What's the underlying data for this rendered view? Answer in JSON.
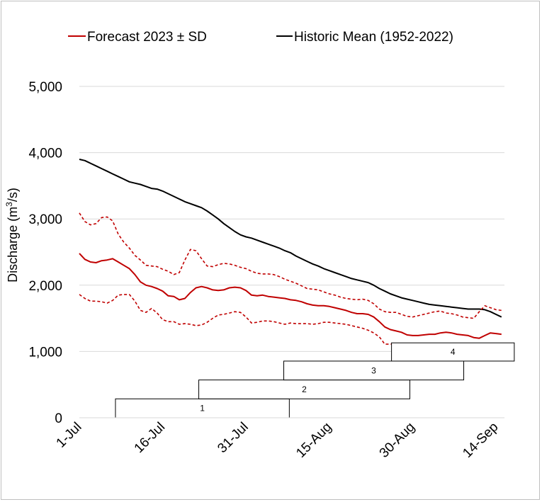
{
  "chart_data": {
    "type": "line",
    "ylabel": "Discharge (m3/s)",
    "ylabel_base": "Discharge (m",
    "ylabel_sup": "3",
    "ylabel_tail": "/s)",
    "ylim": [
      0,
      5000
    ],
    "yticks": [
      0,
      1000,
      2000,
      3000,
      4000,
      5000
    ],
    "ytick_labels": [
      "0",
      "1,000",
      "2,000",
      "3,000",
      "4,000",
      "5,000"
    ],
    "xlim_days": [
      0,
      77
    ],
    "xticks_days": [
      0,
      15,
      30,
      45,
      60,
      75
    ],
    "xtick_labels": [
      "1-Jul",
      "16-Jul",
      "31-Jul",
      "15-Aug",
      "30-Aug",
      "14-Sep"
    ],
    "legend": [
      {
        "label": "Forecast 2023 ± SD",
        "color": "#c00000"
      },
      {
        "label": "Historic Mean (1952-2022)",
        "color": "#000000"
      }
    ],
    "series": [
      {
        "name": "Historic Mean (1952-2022)",
        "color": "#000000",
        "style": "solid",
        "x": [
          0,
          1,
          2,
          3,
          4,
          5,
          6,
          7,
          8,
          9,
          10,
          11,
          12,
          13,
          14,
          15,
          16,
          17,
          18,
          19,
          20,
          21,
          22,
          23,
          24,
          25,
          26,
          27,
          28,
          29,
          30,
          31,
          32,
          33,
          34,
          35,
          36,
          37,
          38,
          39,
          40,
          41,
          42,
          43,
          44,
          45,
          46,
          47,
          48,
          49,
          50,
          51,
          52,
          53,
          54,
          55,
          56,
          57,
          58,
          59,
          60,
          61,
          62,
          63,
          64,
          65,
          66,
          67,
          68,
          69,
          70,
          71,
          72,
          73,
          74,
          75,
          76
        ],
        "values": [
          3900,
          3880,
          3840,
          3800,
          3760,
          3720,
          3680,
          3640,
          3600,
          3560,
          3540,
          3520,
          3490,
          3460,
          3450,
          3420,
          3380,
          3340,
          3300,
          3260,
          3230,
          3200,
          3170,
          3120,
          3060,
          3000,
          2930,
          2870,
          2810,
          2760,
          2730,
          2710,
          2680,
          2650,
          2620,
          2590,
          2560,
          2520,
          2490,
          2440,
          2400,
          2360,
          2320,
          2290,
          2250,
          2220,
          2190,
          2160,
          2130,
          2100,
          2080,
          2060,
          2040,
          2000,
          1950,
          1910,
          1870,
          1840,
          1810,
          1790,
          1770,
          1750,
          1730,
          1710,
          1700,
          1690,
          1680,
          1670,
          1660,
          1650,
          1640,
          1640,
          1640,
          1630,
          1600,
          1560,
          1520
        ]
      },
      {
        "name": "Forecast 2023",
        "color": "#c00000",
        "style": "solid",
        "x": [
          0,
          1,
          2,
          3,
          4,
          5,
          6,
          7,
          8,
          9,
          10,
          11,
          12,
          13,
          14,
          15,
          16,
          17,
          18,
          19,
          20,
          21,
          22,
          23,
          24,
          25,
          26,
          27,
          28,
          29,
          30,
          31,
          32,
          33,
          34,
          35,
          36,
          37,
          38,
          39,
          40,
          41,
          42,
          43,
          44,
          45,
          46,
          47,
          48,
          49,
          50,
          51,
          52,
          53,
          54,
          55,
          56,
          57,
          58,
          59,
          60,
          61,
          62,
          63,
          64,
          65,
          66,
          67,
          68,
          69,
          70,
          71,
          72,
          73,
          74,
          75,
          76
        ],
        "values": [
          2480,
          2390,
          2350,
          2340,
          2370,
          2380,
          2400,
          2350,
          2300,
          2250,
          2160,
          2050,
          2000,
          1980,
          1950,
          1910,
          1840,
          1830,
          1780,
          1800,
          1890,
          1960,
          1980,
          1960,
          1930,
          1920,
          1930,
          1960,
          1970,
          1960,
          1920,
          1850,
          1840,
          1850,
          1830,
          1820,
          1810,
          1800,
          1780,
          1770,
          1750,
          1720,
          1700,
          1690,
          1690,
          1680,
          1660,
          1640,
          1620,
          1590,
          1570,
          1570,
          1560,
          1520,
          1450,
          1370,
          1330,
          1310,
          1290,
          1250,
          1240,
          1240,
          1250,
          1260,
          1260,
          1280,
          1290,
          1280,
          1260,
          1250,
          1240,
          1210,
          1200,
          1240,
          1280,
          1270,
          1260
        ]
      },
      {
        "name": "Forecast 2023 + SD",
        "color": "#c00000",
        "style": "dashed",
        "x": [
          0,
          1,
          2,
          3,
          4,
          5,
          6,
          7,
          8,
          9,
          10,
          11,
          12,
          13,
          14,
          15,
          16,
          17,
          18,
          19,
          20,
          21,
          22,
          23,
          24,
          25,
          26,
          27,
          28,
          29,
          30,
          31,
          32,
          33,
          34,
          35,
          36,
          37,
          38,
          39,
          40,
          41,
          42,
          43,
          44,
          45,
          46,
          47,
          48,
          49,
          50,
          51,
          52,
          53,
          54,
          55,
          56,
          57,
          58,
          59,
          60,
          61,
          62,
          63,
          64,
          65,
          66,
          67,
          68,
          69,
          70,
          71,
          72,
          73,
          74,
          75,
          76
        ],
        "values": [
          3090,
          2960,
          2910,
          2930,
          3020,
          3030,
          2970,
          2770,
          2650,
          2560,
          2450,
          2380,
          2300,
          2290,
          2280,
          2240,
          2210,
          2160,
          2190,
          2380,
          2540,
          2520,
          2400,
          2290,
          2280,
          2310,
          2330,
          2320,
          2300,
          2270,
          2250,
          2210,
          2180,
          2170,
          2170,
          2160,
          2130,
          2090,
          2060,
          2030,
          1990,
          1950,
          1940,
          1930,
          1900,
          1870,
          1850,
          1820,
          1800,
          1790,
          1780,
          1790,
          1770,
          1720,
          1640,
          1600,
          1590,
          1590,
          1560,
          1530,
          1520,
          1540,
          1560,
          1580,
          1600,
          1610,
          1580,
          1570,
          1550,
          1520,
          1510,
          1500,
          1600,
          1690,
          1660,
          1630,
          1620
        ]
      },
      {
        "name": "Forecast 2023 - SD",
        "color": "#c00000",
        "style": "dashed",
        "x": [
          0,
          1,
          2,
          3,
          4,
          5,
          6,
          7,
          8,
          9,
          10,
          11,
          12,
          13,
          14,
          15,
          16,
          17,
          18,
          19,
          20,
          21,
          22,
          23,
          24,
          25,
          26,
          27,
          28,
          29,
          30,
          31,
          32,
          33,
          34,
          35,
          36,
          37,
          38,
          39,
          40,
          41,
          42,
          43,
          44,
          45,
          46,
          47,
          48,
          49,
          50,
          51,
          52,
          53,
          54,
          55,
          56,
          57,
          58,
          59
        ],
        "values": [
          1860,
          1800,
          1760,
          1760,
          1750,
          1730,
          1770,
          1850,
          1860,
          1860,
          1760,
          1620,
          1590,
          1650,
          1580,
          1480,
          1450,
          1450,
          1410,
          1420,
          1410,
          1390,
          1400,
          1440,
          1500,
          1550,
          1560,
          1580,
          1600,
          1590,
          1520,
          1430,
          1440,
          1460,
          1460,
          1450,
          1430,
          1410,
          1430,
          1420,
          1420,
          1420,
          1410,
          1420,
          1440,
          1440,
          1430,
          1420,
          1410,
          1390,
          1370,
          1350,
          1320,
          1280,
          1220,
          1110,
          1110,
          1110,
          1110,
          1110
        ]
      }
    ],
    "boxes": [
      {
        "label": "1",
        "start": 6.5,
        "end": 37.8,
        "y0": 0,
        "y1": 285
      },
      {
        "label": "2",
        "start": 21.5,
        "end": 59.5,
        "y0": 285,
        "y1": 570
      },
      {
        "label": "3",
        "start": 36.8,
        "end": 69.2,
        "y0": 570,
        "y1": 855
      },
      {
        "label": "4",
        "start": 56.2,
        "end": 78.3,
        "y0": 855,
        "y1": 1130
      }
    ]
  }
}
